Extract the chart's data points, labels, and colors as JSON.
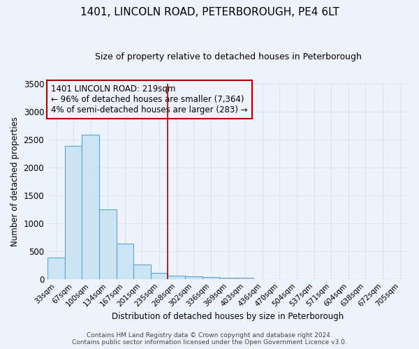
{
  "title": "1401, LINCOLN ROAD, PETERBOROUGH, PE4 6LT",
  "subtitle": "Size of property relative to detached houses in Peterborough",
  "xlabel": "Distribution of detached houses by size in Peterborough",
  "ylabel": "Number of detached properties",
  "categories": [
    "33sqm",
    "67sqm",
    "100sqm",
    "134sqm",
    "167sqm",
    "201sqm",
    "235sqm",
    "268sqm",
    "302sqm",
    "336sqm",
    "369sqm",
    "403sqm",
    "436sqm",
    "470sqm",
    "504sqm",
    "537sqm",
    "571sqm",
    "604sqm",
    "638sqm",
    "672sqm",
    "705sqm"
  ],
  "values": [
    390,
    2390,
    2590,
    1250,
    640,
    260,
    110,
    60,
    50,
    35,
    25,
    20,
    0,
    0,
    0,
    0,
    0,
    0,
    0,
    0,
    0
  ],
  "bar_color_fill": "#cce5f5",
  "bar_color_edge": "#5ba3d0",
  "ylim": [
    0,
    3500
  ],
  "yticks": [
    0,
    500,
    1000,
    1500,
    2000,
    2500,
    3000,
    3500
  ],
  "red_line_x": 6.5,
  "annotation_text": "1401 LINCOLN ROAD: 219sqm\n← 96% of detached houses are smaller (7,364)\n4% of semi-detached houses are larger (283) →",
  "annotation_box_color": "#aa0000",
  "footer_line1": "Contains HM Land Registry data © Crown copyright and database right 2024.",
  "footer_line2": "Contains public sector information licensed under the Open Government Licence v3.0.",
  "background_color": "#eef2fb",
  "grid_color": "#d8e4f0",
  "title_fontsize": 11,
  "subtitle_fontsize": 9
}
